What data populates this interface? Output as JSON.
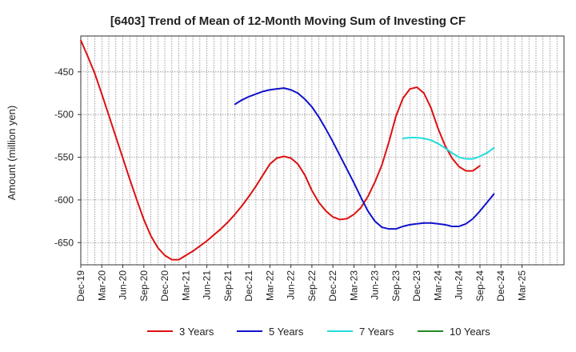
{
  "chart_data": {
    "type": "line",
    "title": "[6403]  Trend of Mean of 12-Month Moving Sum of Investing CF",
    "xlabel": "",
    "ylabel": "Amount (million yen)",
    "ylim": [
      -676,
      -408
    ],
    "yticks": [
      -450,
      -500,
      -550,
      -600,
      -650
    ],
    "x_start": "Dec-19",
    "months": 69,
    "x_tick_labels": [
      "Dec-19",
      "Mar-20",
      "Jun-20",
      "Sep-20",
      "Dec-20",
      "Mar-21",
      "Jun-21",
      "Sep-21",
      "Dec-21",
      "Mar-22",
      "Jun-22",
      "Sep-22",
      "Dec-22",
      "Mar-23",
      "Jun-23",
      "Sep-23",
      "Dec-23",
      "Mar-24",
      "Jun-24",
      "Sep-24",
      "Dec-24",
      "Mar-25"
    ],
    "grid": true,
    "legend_position": "bottom",
    "series": [
      {
        "name": "3 Years",
        "color": "#dd1111",
        "start_index": 0,
        "values": [
          -413,
          -432,
          -452,
          -476,
          -501,
          -526,
          -551,
          -576,
          -600,
          -623,
          -642,
          -656,
          -665,
          -670,
          -670,
          -665,
          -660,
          -654,
          -648,
          -641,
          -634,
          -626,
          -617,
          -607,
          -596,
          -584,
          -571,
          -558,
          -551,
          -549,
          -551,
          -558,
          -571,
          -589,
          -603,
          -613,
          -620,
          -623,
          -622,
          -617,
          -609,
          -596,
          -579,
          -559,
          -532,
          -502,
          -481,
          -470,
          -468,
          -475,
          -492,
          -516,
          -536,
          -551,
          -561,
          -566,
          -566,
          -560
        ]
      },
      {
        "name": "5 Years",
        "color": "#1111cc",
        "start_index": 22,
        "values": [
          -488,
          -483,
          -479,
          -476,
          -473,
          -471,
          -470,
          -469,
          -471,
          -475,
          -482,
          -491,
          -503,
          -517,
          -532,
          -548,
          -564,
          -580,
          -597,
          -613,
          -625,
          -632,
          -634,
          -634,
          -631,
          -629,
          -628,
          -627,
          -627,
          -628,
          -629,
          -631,
          -631,
          -628,
          -622,
          -613,
          -603,
          -593
        ]
      },
      {
        "name": "7 Years",
        "color": "#22dddd",
        "start_index": 46,
        "values": [
          -528,
          -527,
          -527,
          -528,
          -530,
          -534,
          -539,
          -545,
          -550,
          -552,
          -552,
          -549,
          -545,
          -539
        ]
      },
      {
        "name": "10 Years",
        "color": "#228822",
        "start_index": 0,
        "values": []
      }
    ]
  }
}
